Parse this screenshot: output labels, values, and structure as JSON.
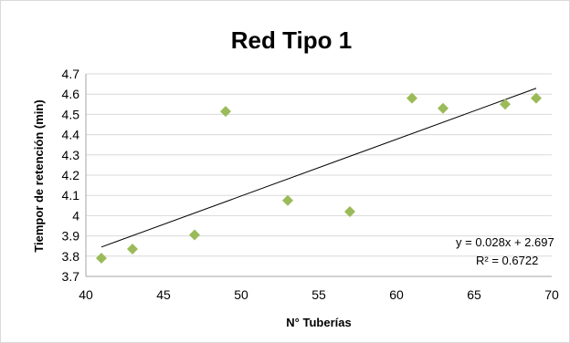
{
  "chart_data": {
    "type": "scatter",
    "title": "Red Tipo 1",
    "xlabel": "N° Tuberías",
    "ylabel": "Tiempor de retención (min)",
    "xlim": [
      40,
      70
    ],
    "ylim": [
      3.7,
      4.7
    ],
    "x_ticks": [
      "40",
      "45",
      "50",
      "55",
      "60",
      "65",
      "70"
    ],
    "y_ticks": [
      "3.7",
      "3.8",
      "3.9",
      "4",
      "4.1",
      "4.2",
      "4.3",
      "4.4",
      "4.5",
      "4.6",
      "4.7"
    ],
    "grid": true,
    "series": [
      {
        "points": [
          {
            "x": 41,
            "y": 3.79
          },
          {
            "x": 43,
            "y": 3.835
          },
          {
            "x": 47,
            "y": 3.905
          },
          {
            "x": 49,
            "y": 4.515
          },
          {
            "x": 53,
            "y": 4.075
          },
          {
            "x": 57,
            "y": 4.02
          },
          {
            "x": 61,
            "y": 4.58
          },
          {
            "x": 63,
            "y": 4.53
          },
          {
            "x": 67,
            "y": 4.55
          },
          {
            "x": 69,
            "y": 4.58
          }
        ],
        "color": "#9BBB59"
      }
    ],
    "trendline": {
      "slope": 0.028,
      "intercept": 2.697,
      "x_range": [
        41,
        69
      ],
      "equation": "y = 0.028x + 2.697",
      "r_squared": "R² = 0.6722"
    }
  }
}
